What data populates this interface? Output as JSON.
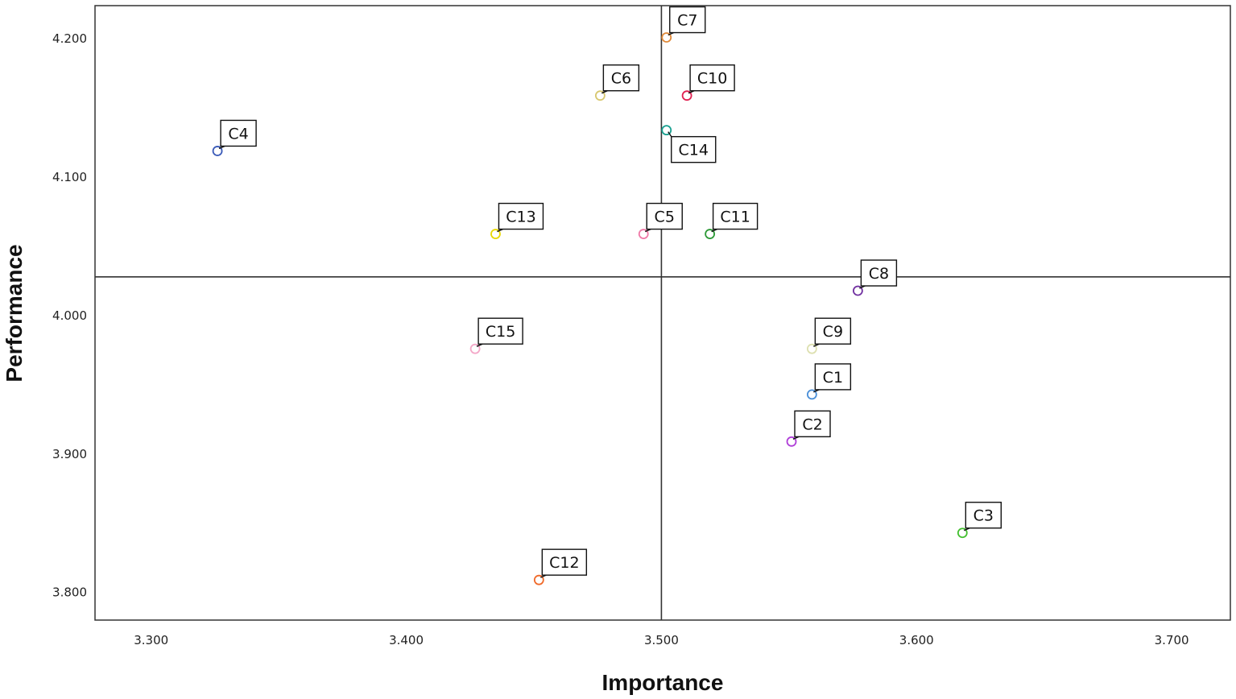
{
  "chart_data": {
    "type": "scatter",
    "title": "",
    "xlabel": "Importance",
    "ylabel": "Performance",
    "xlim": [
      3.278,
      3.723
    ],
    "ylim": [
      3.78,
      4.224
    ],
    "x_ticks": [
      "3.300",
      "3.400",
      "3.500",
      "3.600",
      "3.700"
    ],
    "y_ticks": [
      "3.800",
      "3.900",
      "4.000",
      "4.100",
      "4.200"
    ],
    "reference_lines": {
      "x": 3.5,
      "y": 4.028
    },
    "grid": false,
    "legend": "none",
    "points": [
      {
        "label": "C1",
        "x": 3.559,
        "y": 3.943,
        "color": "#4a8fd8",
        "label_side": "above-right"
      },
      {
        "label": "C2",
        "x": 3.551,
        "y": 3.909,
        "color": "#b040d8",
        "label_side": "above-right"
      },
      {
        "label": "C3",
        "x": 3.618,
        "y": 3.843,
        "color": "#44c030",
        "label_side": "above-right"
      },
      {
        "label": "C4",
        "x": 3.326,
        "y": 4.119,
        "color": "#3a5ab8",
        "label_side": "above-right"
      },
      {
        "label": "C5",
        "x": 3.493,
        "y": 4.059,
        "color": "#f07aa8",
        "label_side": "above-right"
      },
      {
        "label": "C6",
        "x": 3.476,
        "y": 4.159,
        "color": "#d8c870",
        "label_side": "above-right"
      },
      {
        "label": "C7",
        "x": 3.502,
        "y": 4.201,
        "color": "#e08a3a",
        "label_side": "above-right"
      },
      {
        "label": "C8",
        "x": 3.577,
        "y": 4.018,
        "color": "#7030a0",
        "label_side": "above-right"
      },
      {
        "label": "C9",
        "x": 3.559,
        "y": 3.976,
        "color": "#dde0b0",
        "label_side": "above-right"
      },
      {
        "label": "C10",
        "x": 3.51,
        "y": 4.159,
        "color": "#e02050",
        "label_side": "above-right"
      },
      {
        "label": "C11",
        "x": 3.519,
        "y": 4.059,
        "color": "#2e9a38",
        "label_side": "above-right"
      },
      {
        "label": "C12",
        "x": 3.452,
        "y": 3.809,
        "color": "#f06a2a",
        "label_side": "above-right"
      },
      {
        "label": "C13",
        "x": 3.435,
        "y": 4.059,
        "color": "#e8d800",
        "label_side": "above-right"
      },
      {
        "label": "C14",
        "x": 3.502,
        "y": 4.134,
        "color": "#18a090",
        "label_side": "below-right"
      },
      {
        "label": "C15",
        "x": 3.427,
        "y": 3.976,
        "color": "#f4a8c8",
        "label_side": "above-right"
      }
    ]
  }
}
